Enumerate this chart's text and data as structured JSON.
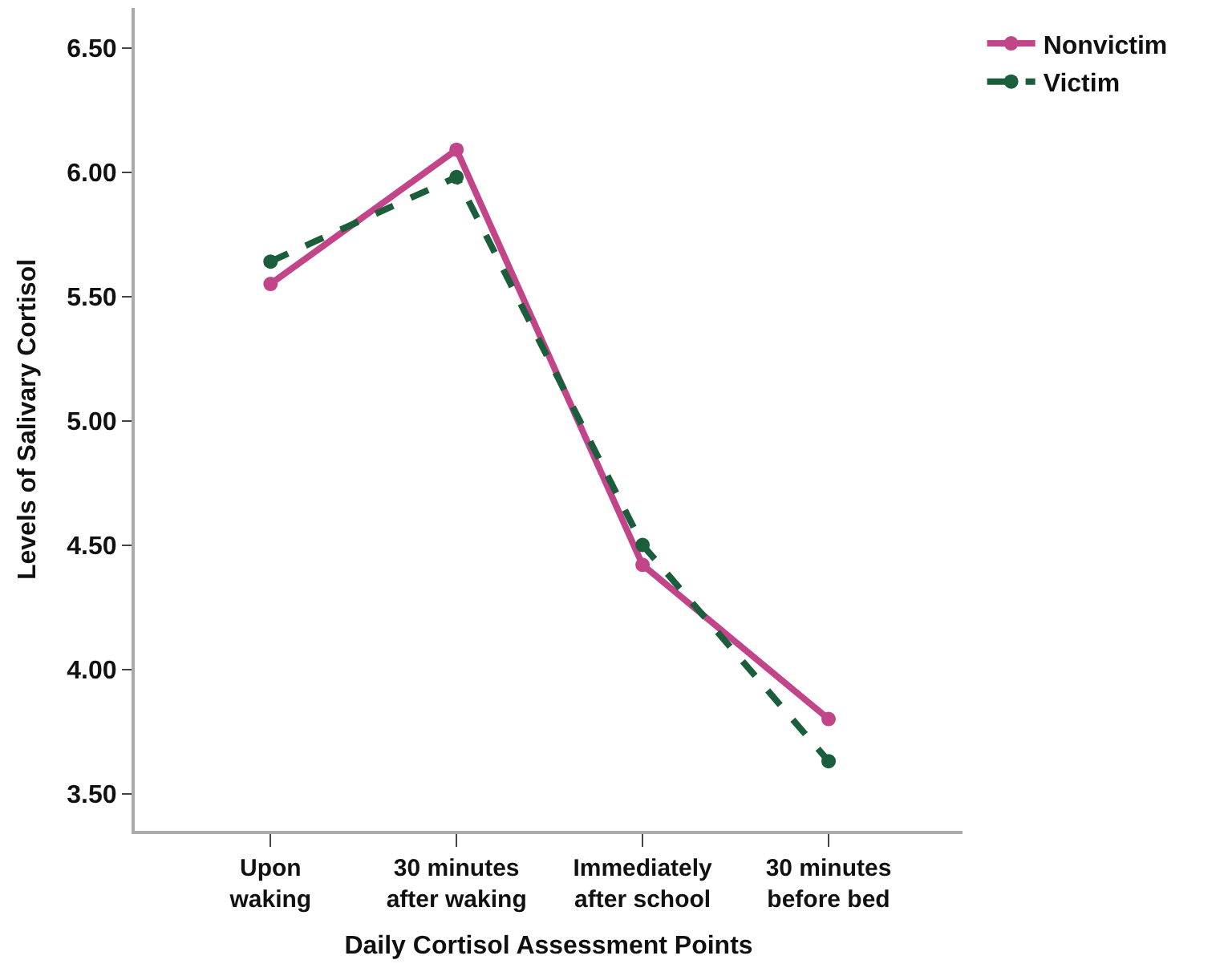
{
  "chart_data": {
    "type": "line",
    "xlabel": "Daily Cortisol Assessment Points",
    "ylabel": "Levels of Salivary Cortisol",
    "categories": [
      "Upon waking",
      "30 minutes after waking",
      "Immediately after school",
      "30 minutes before bed"
    ],
    "series": [
      {
        "name": "Nonvictim",
        "color": "#c2458a",
        "values": [
          5.55,
          6.09,
          4.42,
          3.8
        ],
        "line_style": "solid"
      },
      {
        "name": "Victim",
        "color": "#1b5e3b",
        "values": [
          5.64,
          5.98,
          4.5,
          3.63
        ],
        "line_style": "dashed"
      }
    ],
    "ylim": [
      3.35,
      6.66
    ],
    "yticks": [
      {
        "value": 3.5,
        "label": "3.50"
      },
      {
        "value": 4.0,
        "label": "4.00"
      },
      {
        "value": 4.5,
        "label": "4.50"
      },
      {
        "value": 5.0,
        "label": "5.00"
      },
      {
        "value": 5.5,
        "label": "5.50"
      },
      {
        "value": 6.0,
        "label": "6.00"
      },
      {
        "value": 6.5,
        "label": "6.50"
      }
    ],
    "marker": "circle",
    "legend": "top right"
  }
}
